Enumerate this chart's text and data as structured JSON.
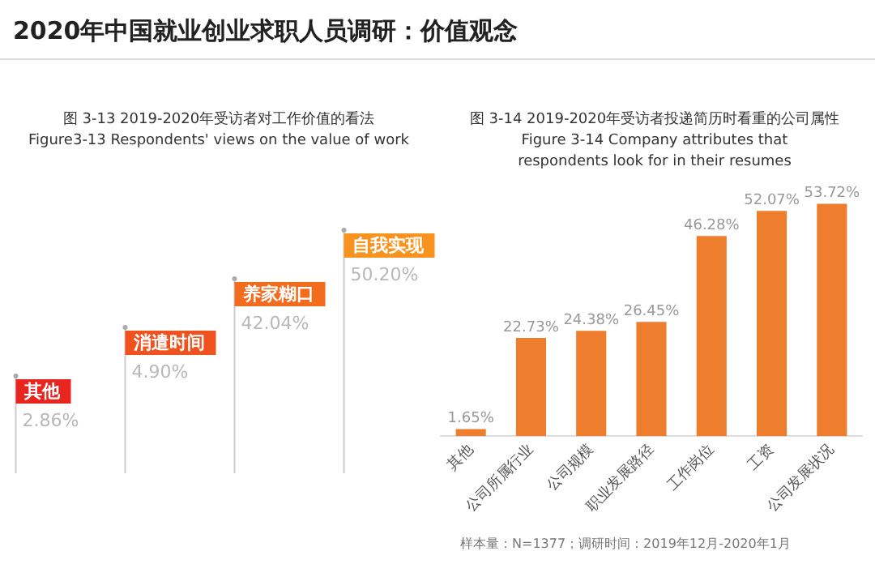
{
  "chart_data": [
    {
      "type": "other",
      "title": "图 3-13 2019-2020年受访者对工作价值的看法",
      "subtitle": "Figure3-13 Respondents' views on the value of work",
      "annotations": [
        "2020年中国就业创业求职人员调研：价值观念"
      ],
      "categories": [
        "其他",
        "消遣时间",
        "养家糊口",
        "自我实现"
      ],
      "values": [
        2.86,
        4.9,
        42.04,
        50.2
      ],
      "value_labels": [
        "2.86%",
        "4.90%",
        "42.04%",
        "50.20%"
      ],
      "colors": [
        "#e8251f",
        "#f0521f",
        "#f36b1c",
        "#f7931e"
      ]
    },
    {
      "type": "bar",
      "title": "图 3-14 2019-2020年受访者投递简历时看重的公司属性",
      "subtitle": "Figure 3-14  Company attributes that respondents look for in their resumes",
      "annotations": [
        "样本量：N=1377；调研时间：2019年12月-2020年1月"
      ],
      "categories": [
        "其他",
        "公司所属行业",
        "公司规模",
        "职业发展路径",
        "工作岗位",
        "工资",
        "公司发展状况"
      ],
      "values": [
        1.65,
        22.73,
        24.38,
        26.45,
        46.28,
        52.07,
        53.72
      ],
      "value_labels": [
        "1.65%",
        "22.73%",
        "24.38%",
        "26.45%",
        "46.28%",
        "52.07%",
        "53.72%"
      ],
      "color": "#ee7d2e",
      "grid": false,
      "legend": false
    }
  ]
}
